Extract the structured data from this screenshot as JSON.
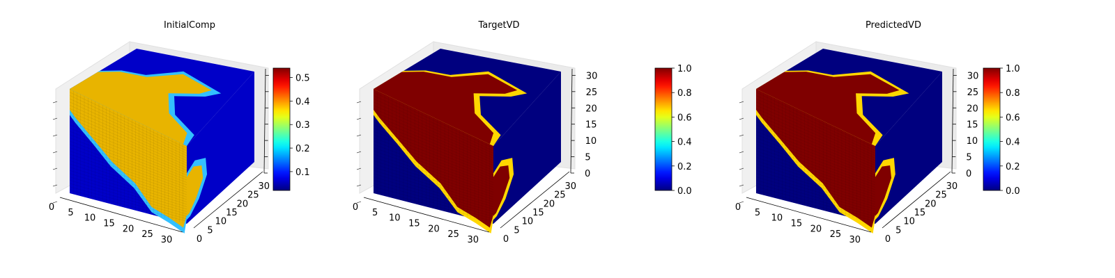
{
  "chart_data": [
    {
      "type": "voxel3d",
      "title": "InitialComp",
      "x_ticks": [
        "0",
        "5",
        "10",
        "15",
        "20",
        "25",
        "30"
      ],
      "y_ticks": [
        "0",
        "5",
        "10",
        "15",
        "20",
        "25",
        "30"
      ],
      "z_ticks": [],
      "xlim": [
        0,
        32
      ],
      "ylim": [
        0,
        32
      ],
      "zlim": [
        0,
        32
      ],
      "colormap": "jet",
      "colorbar": {
        "ticks": [
          "0.1",
          "0.2",
          "0.3",
          "0.4",
          "0.5"
        ],
        "tick_values": [
          0.1,
          0.2,
          0.3,
          0.4,
          0.5
        ],
        "range": [
          0.02,
          0.54
        ]
      },
      "value_range": [
        0.02,
        0.45
      ]
    },
    {
      "type": "voxel3d",
      "title": "TargetVD",
      "x_ticks": [
        "0",
        "5",
        "10",
        "15",
        "20",
        "25",
        "30"
      ],
      "y_ticks": [
        "0",
        "5",
        "10",
        "15",
        "20",
        "25",
        "30"
      ],
      "z_ticks": [
        "0",
        "5",
        "10",
        "15",
        "20",
        "25",
        "30"
      ],
      "xlim": [
        0,
        32
      ],
      "ylim": [
        0,
        32
      ],
      "zlim": [
        0,
        32
      ],
      "colormap": "jet",
      "colorbar": {
        "ticks": [
          "0.0",
          "0.2",
          "0.4",
          "0.6",
          "0.8",
          "1.0"
        ],
        "tick_values": [
          0,
          0.2,
          0.4,
          0.6,
          0.8,
          1.0
        ],
        "range": [
          0,
          1
        ]
      },
      "value_range": [
        0,
        1
      ]
    },
    {
      "type": "voxel3d",
      "title": "PredictedVD",
      "x_ticks": [
        "0",
        "5",
        "10",
        "15",
        "20",
        "25",
        "30"
      ],
      "y_ticks": [
        "0",
        "5",
        "10",
        "15",
        "20",
        "25",
        "30"
      ],
      "z_ticks": [
        "0",
        "5",
        "10",
        "15",
        "20",
        "25",
        "30"
      ],
      "xlim": [
        0,
        32
      ],
      "ylim": [
        0,
        32
      ],
      "zlim": [
        0,
        32
      ],
      "colormap": "jet",
      "colorbar": {
        "ticks": [
          "0.0",
          "0.2",
          "0.4",
          "0.6",
          "0.8",
          "1.0"
        ],
        "tick_values": [
          0,
          0.2,
          0.4,
          0.6,
          0.8,
          1.0
        ],
        "range": [
          0,
          1
        ]
      },
      "value_range": [
        0,
        1
      ]
    }
  ]
}
